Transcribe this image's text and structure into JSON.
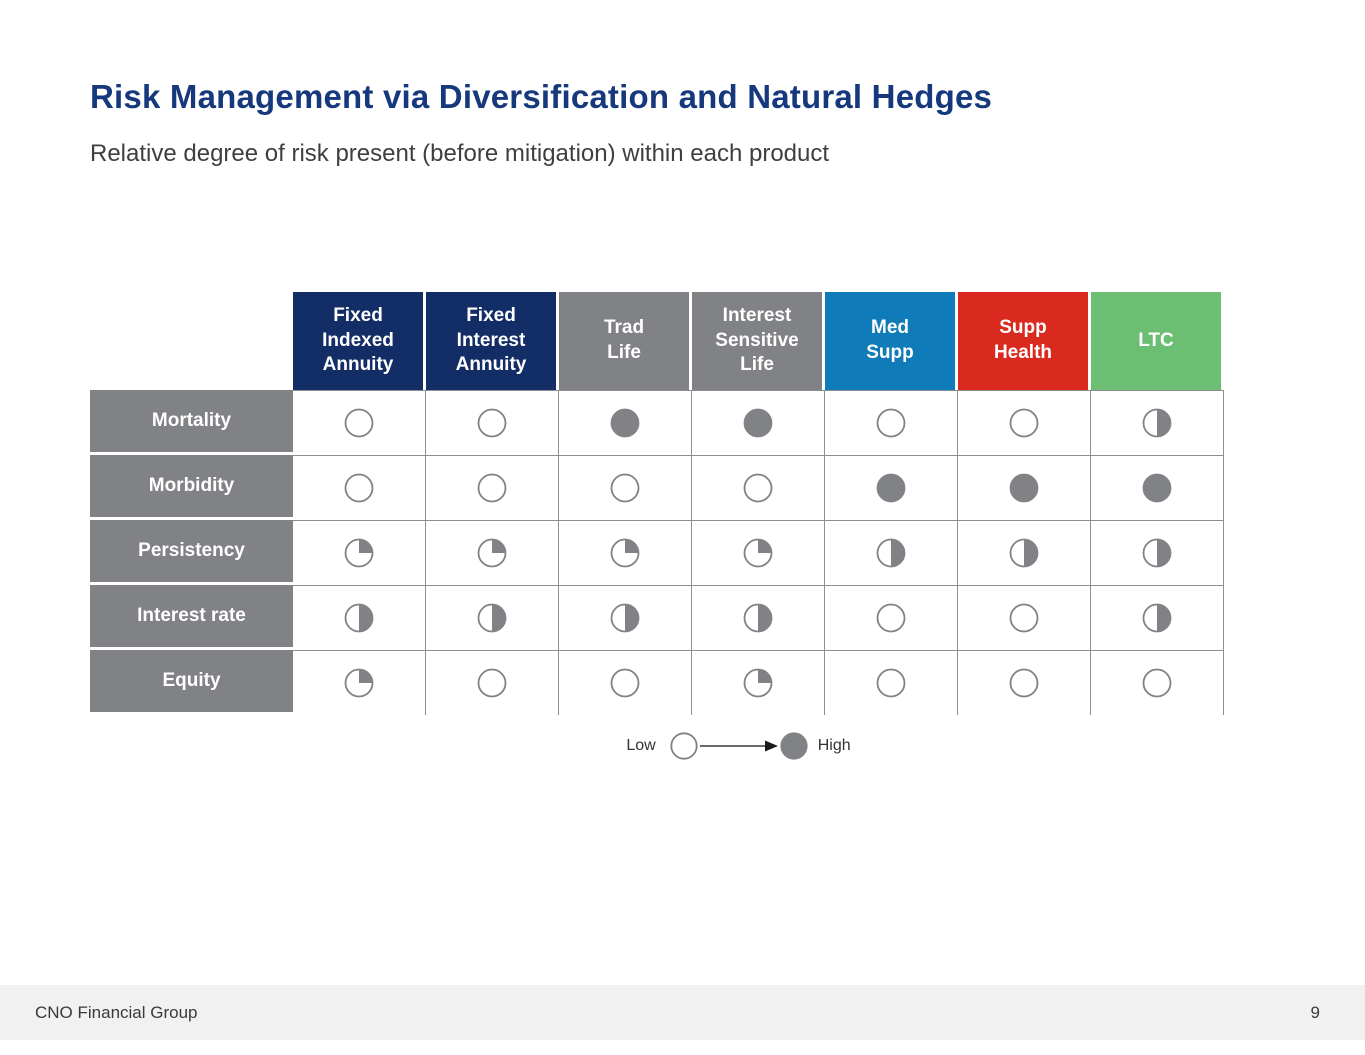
{
  "slide": {
    "title": "Risk Management via Diversification and Natural Hedges",
    "subtitle": "Relative degree of risk present (before mitigation) within each product"
  },
  "matrix": {
    "ball_color": "#808285",
    "grid_line_color": "#8c8e91",
    "row_header_bg": "#808285",
    "columns": [
      {
        "label": "Fixed\nIndexed\nAnnuity",
        "color": "#132e66"
      },
      {
        "label": "Fixed\nInterest\nAnnuity",
        "color": "#132e66"
      },
      {
        "label": "Trad\nLife",
        "color": "#808285"
      },
      {
        "label": "Interest\nSensitive\nLife",
        "color": "#808285"
      },
      {
        "label": "Med\nSupp",
        "color": "#0f7bb8"
      },
      {
        "label": "Supp\nHealth",
        "color": "#da2a20"
      },
      {
        "label": "LTC",
        "color": "#6cbe73"
      }
    ],
    "rows": [
      {
        "label": "Mortality",
        "values": [
          "empty",
          "empty",
          "full",
          "full",
          "empty",
          "empty",
          "half"
        ]
      },
      {
        "label": "Morbidity",
        "values": [
          "empty",
          "empty",
          "empty",
          "empty",
          "full",
          "full",
          "full"
        ]
      },
      {
        "label": "Persistency",
        "values": [
          "quarter",
          "quarter",
          "quarter",
          "quarter",
          "half",
          "half",
          "half"
        ]
      },
      {
        "label": "Interest rate",
        "values": [
          "half",
          "half",
          "half",
          "half",
          "empty",
          "empty",
          "half"
        ]
      },
      {
        "label": "Equity",
        "values": [
          "quarter",
          "empty",
          "empty",
          "quarter",
          "empty",
          "empty",
          "empty"
        ]
      }
    ]
  },
  "legend": {
    "low_label": "Low",
    "high_label": "High"
  },
  "footer": {
    "company": "CNO Financial Group",
    "page_number": "9"
  },
  "chart_data": {
    "type": "table",
    "title": "Risk Management via Diversification and Natural Hedges",
    "subtitle": "Relative degree of risk present (before mitigation) within each product",
    "columns": [
      "Fixed Indexed Annuity",
      "Fixed Interest Annuity",
      "Trad Life",
      "Interest Sensitive Life",
      "Med Supp",
      "Supp Health",
      "LTC"
    ],
    "rows": [
      "Mortality",
      "Morbidity",
      "Persistency",
      "Interest rate",
      "Equity"
    ],
    "value_scale": {
      "0": "empty (low)",
      "0.25": "quarter filled",
      "0.5": "half filled",
      "1": "full (high)"
    },
    "values": [
      [
        0,
        0,
        1,
        1,
        0,
        0,
        0.5
      ],
      [
        0,
        0,
        0,
        0,
        1,
        1,
        1
      ],
      [
        0.25,
        0.25,
        0.25,
        0.25,
        0.5,
        0.5,
        0.5
      ],
      [
        0.5,
        0.5,
        0.5,
        0.5,
        0,
        0,
        0.5
      ],
      [
        0.25,
        0,
        0,
        0.25,
        0,
        0,
        0
      ]
    ],
    "legend": {
      "low": "Low",
      "high": "High",
      "style": "harvey-ball circles, empty = low risk, filled = high risk"
    }
  }
}
